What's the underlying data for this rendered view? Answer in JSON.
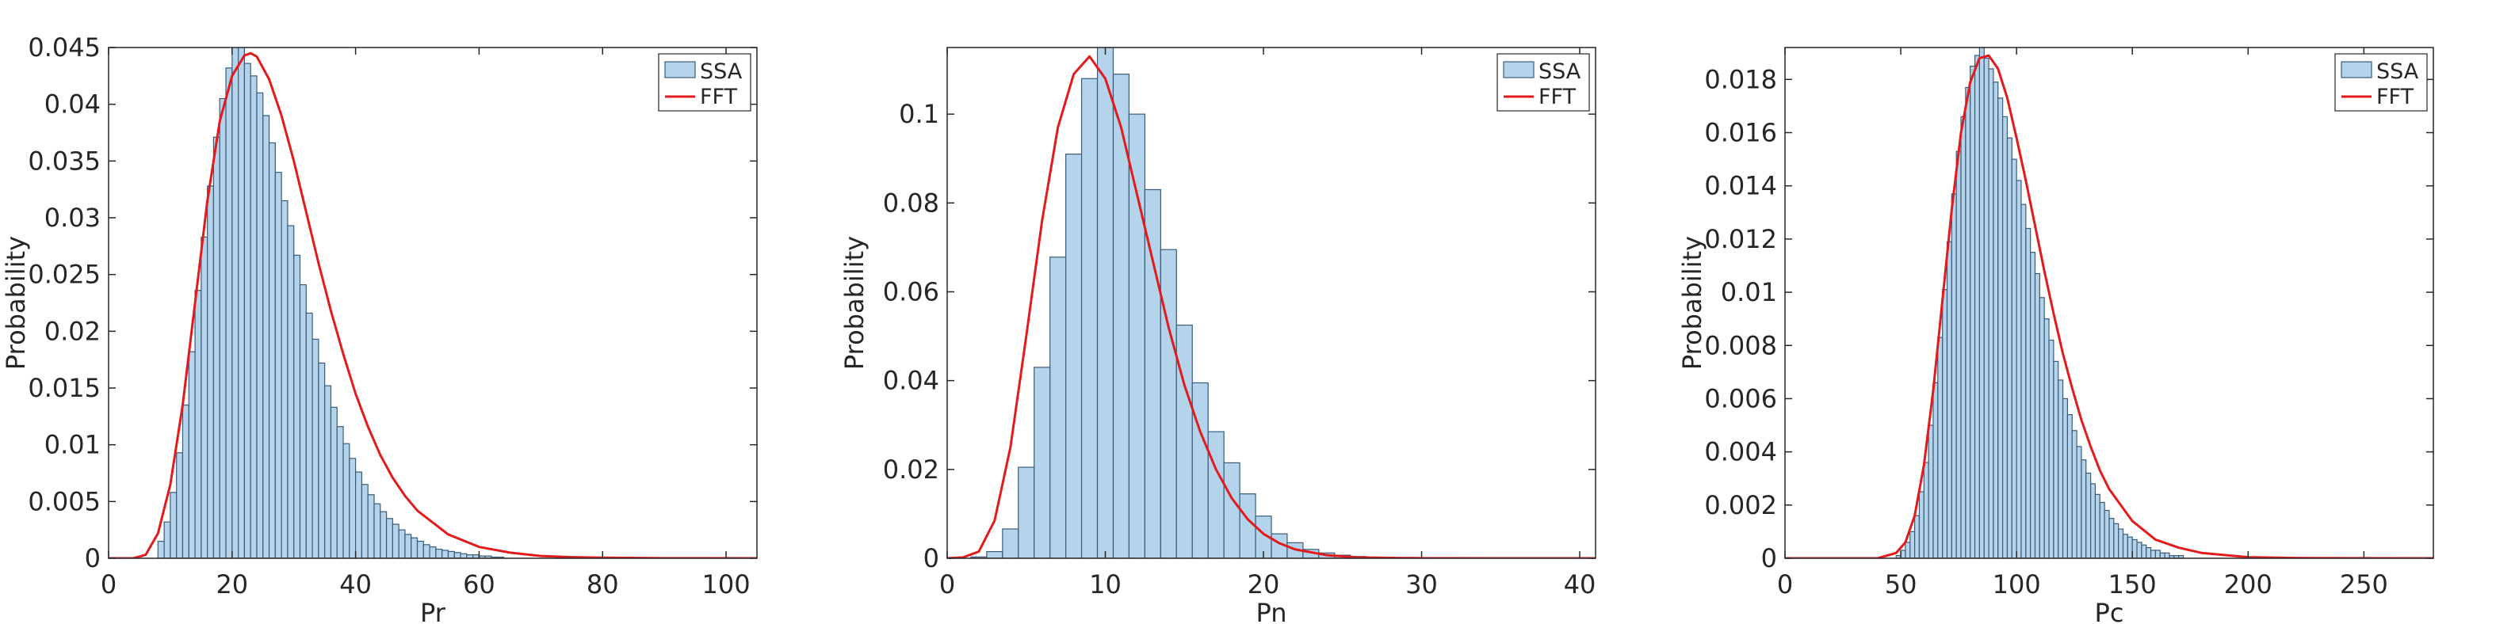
{
  "colors": {
    "bar_fill": "#b4d4eb",
    "bar_edge": "#3b5a78",
    "curve": "#e31a1c",
    "axis": "#262626"
  },
  "chart_data": [
    {
      "type": "bar",
      "xlabel": "Pr",
      "ylabel": "Probability",
      "xlim": [
        0,
        105
      ],
      "ylim": [
        0,
        0.045
      ],
      "xticks": [
        0,
        20,
        40,
        60,
        80,
        100
      ],
      "yticks": [
        0,
        0.005,
        0.01,
        0.015,
        0.02,
        0.025,
        0.03,
        0.035,
        0.04,
        0.045
      ],
      "xtick_labels": [
        "0",
        "20",
        "40",
        "60",
        "80",
        "100"
      ],
      "ytick_labels": [
        "0",
        "0.005",
        "0.01",
        "0.015",
        "0.02",
        "0.025",
        "0.03",
        "0.035",
        "0.04",
        "0.045"
      ],
      "legend": {
        "position": "top-right",
        "entries": [
          "SSA",
          "FFT"
        ]
      },
      "grid": false,
      "series": [
        {
          "name": "SSA",
          "kind": "histogram",
          "bin_width": 1,
          "bin_start": 8,
          "values": [
            0.0015,
            0.0032,
            0.0058,
            0.0093,
            0.0135,
            0.0182,
            0.0236,
            0.0283,
            0.0328,
            0.0371,
            0.0405,
            0.0432,
            0.046,
            0.0452,
            0.0436,
            0.0425,
            0.041,
            0.039,
            0.0366,
            0.034,
            0.0315,
            0.0293,
            0.0267,
            0.0241,
            0.0216,
            0.0193,
            0.0172,
            0.0152,
            0.0133,
            0.0116,
            0.0101,
            0.0088,
            0.0076,
            0.0065,
            0.0056,
            0.0048,
            0.0041,
            0.0035,
            0.003,
            0.0025,
            0.0021,
            0.0018,
            0.0015,
            0.0012,
            0.001,
            0.0008,
            0.0007,
            0.0006,
            0.0005,
            0.0004,
            0.0003,
            0.0003,
            0.0002,
            0.0002,
            0.0001,
            0.0001
          ]
        },
        {
          "name": "FFT",
          "kind": "line",
          "x": [
            0,
            4,
            6,
            8,
            10,
            12,
            14,
            16,
            18,
            20,
            22,
            23,
            24,
            26,
            28,
            30,
            32,
            34,
            36,
            38,
            40,
            42,
            44,
            46,
            48,
            50,
            55,
            60,
            65,
            70,
            75,
            80,
            90,
            105
          ],
          "y": [
            0,
            0,
            0.0003,
            0.0022,
            0.0065,
            0.0135,
            0.0225,
            0.0315,
            0.0385,
            0.0425,
            0.0443,
            0.0445,
            0.0442,
            0.0422,
            0.039,
            0.035,
            0.0305,
            0.026,
            0.0218,
            0.018,
            0.0145,
            0.0116,
            0.0091,
            0.0071,
            0.0055,
            0.0042,
            0.0021,
            0.001,
            0.0005,
            0.0002,
            0.0001,
            5e-05,
            1e-05,
            0
          ]
        }
      ]
    },
    {
      "type": "bar",
      "xlabel": "Pn",
      "ylabel": "Probability",
      "xlim": [
        0,
        41
      ],
      "ylim": [
        0,
        0.115
      ],
      "xticks": [
        0,
        10,
        20,
        30,
        40
      ],
      "yticks": [
        0,
        0.02,
        0.04,
        0.06,
        0.08,
        0.1
      ],
      "xtick_labels": [
        "0",
        "10",
        "20",
        "30",
        "40"
      ],
      "ytick_labels": [
        "0",
        "0.02",
        "0.04",
        "0.06",
        "0.08",
        "0.1"
      ],
      "legend": {
        "position": "top-right",
        "entries": [
          "SSA",
          "FFT"
        ]
      },
      "grid": false,
      "series": [
        {
          "name": "SSA",
          "kind": "histogram",
          "bin_width": 1,
          "bin_start": 1.5,
          "values": [
            0.0003,
            0.0015,
            0.0066,
            0.0205,
            0.043,
            0.0678,
            0.091,
            0.108,
            0.116,
            0.109,
            0.1,
            0.083,
            0.0695,
            0.0525,
            0.0395,
            0.0285,
            0.0215,
            0.0145,
            0.0095,
            0.0055,
            0.0035,
            0.002,
            0.0012,
            0.0007,
            0.0004,
            0.0002,
            0.0001
          ]
        },
        {
          "name": "FFT",
          "kind": "line",
          "x": [
            0,
            1,
            2,
            3,
            4,
            5,
            6,
            7,
            8,
            9,
            10,
            11,
            12,
            13,
            14,
            15,
            16,
            17,
            18,
            19,
            20,
            21,
            22,
            24,
            26,
            28,
            30,
            35,
            41
          ],
          "y": [
            0,
            0.0002,
            0.0015,
            0.0085,
            0.025,
            0.05,
            0.076,
            0.097,
            0.109,
            0.113,
            0.108,
            0.097,
            0.082,
            0.067,
            0.052,
            0.039,
            0.0285,
            0.02,
            0.0135,
            0.0088,
            0.0055,
            0.0034,
            0.002,
            0.0007,
            0.0002,
            0.0001,
            3e-05,
            0,
            0
          ]
        }
      ]
    },
    {
      "type": "bar",
      "xlabel": "Pc",
      "ylabel": "Probability",
      "xlim": [
        0,
        280
      ],
      "ylim": [
        0,
        0.0192
      ],
      "xticks": [
        0,
        50,
        100,
        150,
        200,
        250
      ],
      "yticks": [
        0,
        0.002,
        0.004,
        0.006,
        0.008,
        0.01,
        0.012,
        0.014,
        0.016,
        0.018
      ],
      "xtick_labels": [
        "0",
        "50",
        "100",
        "150",
        "200",
        "250"
      ],
      "ytick_labels": [
        "0",
        "0.002",
        "0.004",
        "0.006",
        "0.008",
        "0.01",
        "0.012",
        "0.014",
        "0.016",
        "0.018"
      ],
      "legend": {
        "position": "top-right",
        "entries": [
          "SSA",
          "FFT"
        ]
      },
      "grid": false,
      "series": [
        {
          "name": "SSA",
          "kind": "histogram",
          "bin_width": 2,
          "bin_start": 48,
          "values": [
            0.0001,
            0.0003,
            0.0006,
            0.001,
            0.0016,
            0.0025,
            0.0036,
            0.005,
            0.0066,
            0.0083,
            0.0101,
            0.0119,
            0.0137,
            0.0153,
            0.0166,
            0.0177,
            0.0185,
            0.0189,
            0.0192,
            0.0188,
            0.0184,
            0.0179,
            0.0173,
            0.0166,
            0.0158,
            0.015,
            0.0142,
            0.0133,
            0.0124,
            0.0115,
            0.0107,
            0.0098,
            0.009,
            0.0082,
            0.0074,
            0.0067,
            0.006,
            0.0054,
            0.0048,
            0.0042,
            0.0037,
            0.0032,
            0.0028,
            0.0024,
            0.0021,
            0.0018,
            0.0015,
            0.0013,
            0.0011,
            0.0009,
            0.0008,
            0.0007,
            0.0006,
            0.0005,
            0.0004,
            0.0003,
            0.0003,
            0.0002,
            0.0002,
            0.0001,
            0.0001,
            0.0001
          ]
        },
        {
          "name": "FFT",
          "kind": "line",
          "x": [
            0,
            40,
            48,
            52,
            56,
            60,
            64,
            68,
            72,
            76,
            80,
            84,
            88,
            92,
            96,
            100,
            104,
            108,
            112,
            116,
            120,
            124,
            128,
            132,
            136,
            140,
            150,
            160,
            170,
            180,
            200,
            220,
            280
          ],
          "y": [
            0,
            0,
            0.0002,
            0.0006,
            0.0016,
            0.0035,
            0.0063,
            0.0097,
            0.0131,
            0.016,
            0.0179,
            0.0188,
            0.0189,
            0.0184,
            0.0173,
            0.0158,
            0.0142,
            0.0125,
            0.0108,
            0.0092,
            0.0077,
            0.0064,
            0.0052,
            0.0042,
            0.0033,
            0.0026,
            0.0014,
            0.0007,
            0.0004,
            0.0002,
            4e-05,
            1e-05,
            0
          ]
        }
      ]
    }
  ]
}
